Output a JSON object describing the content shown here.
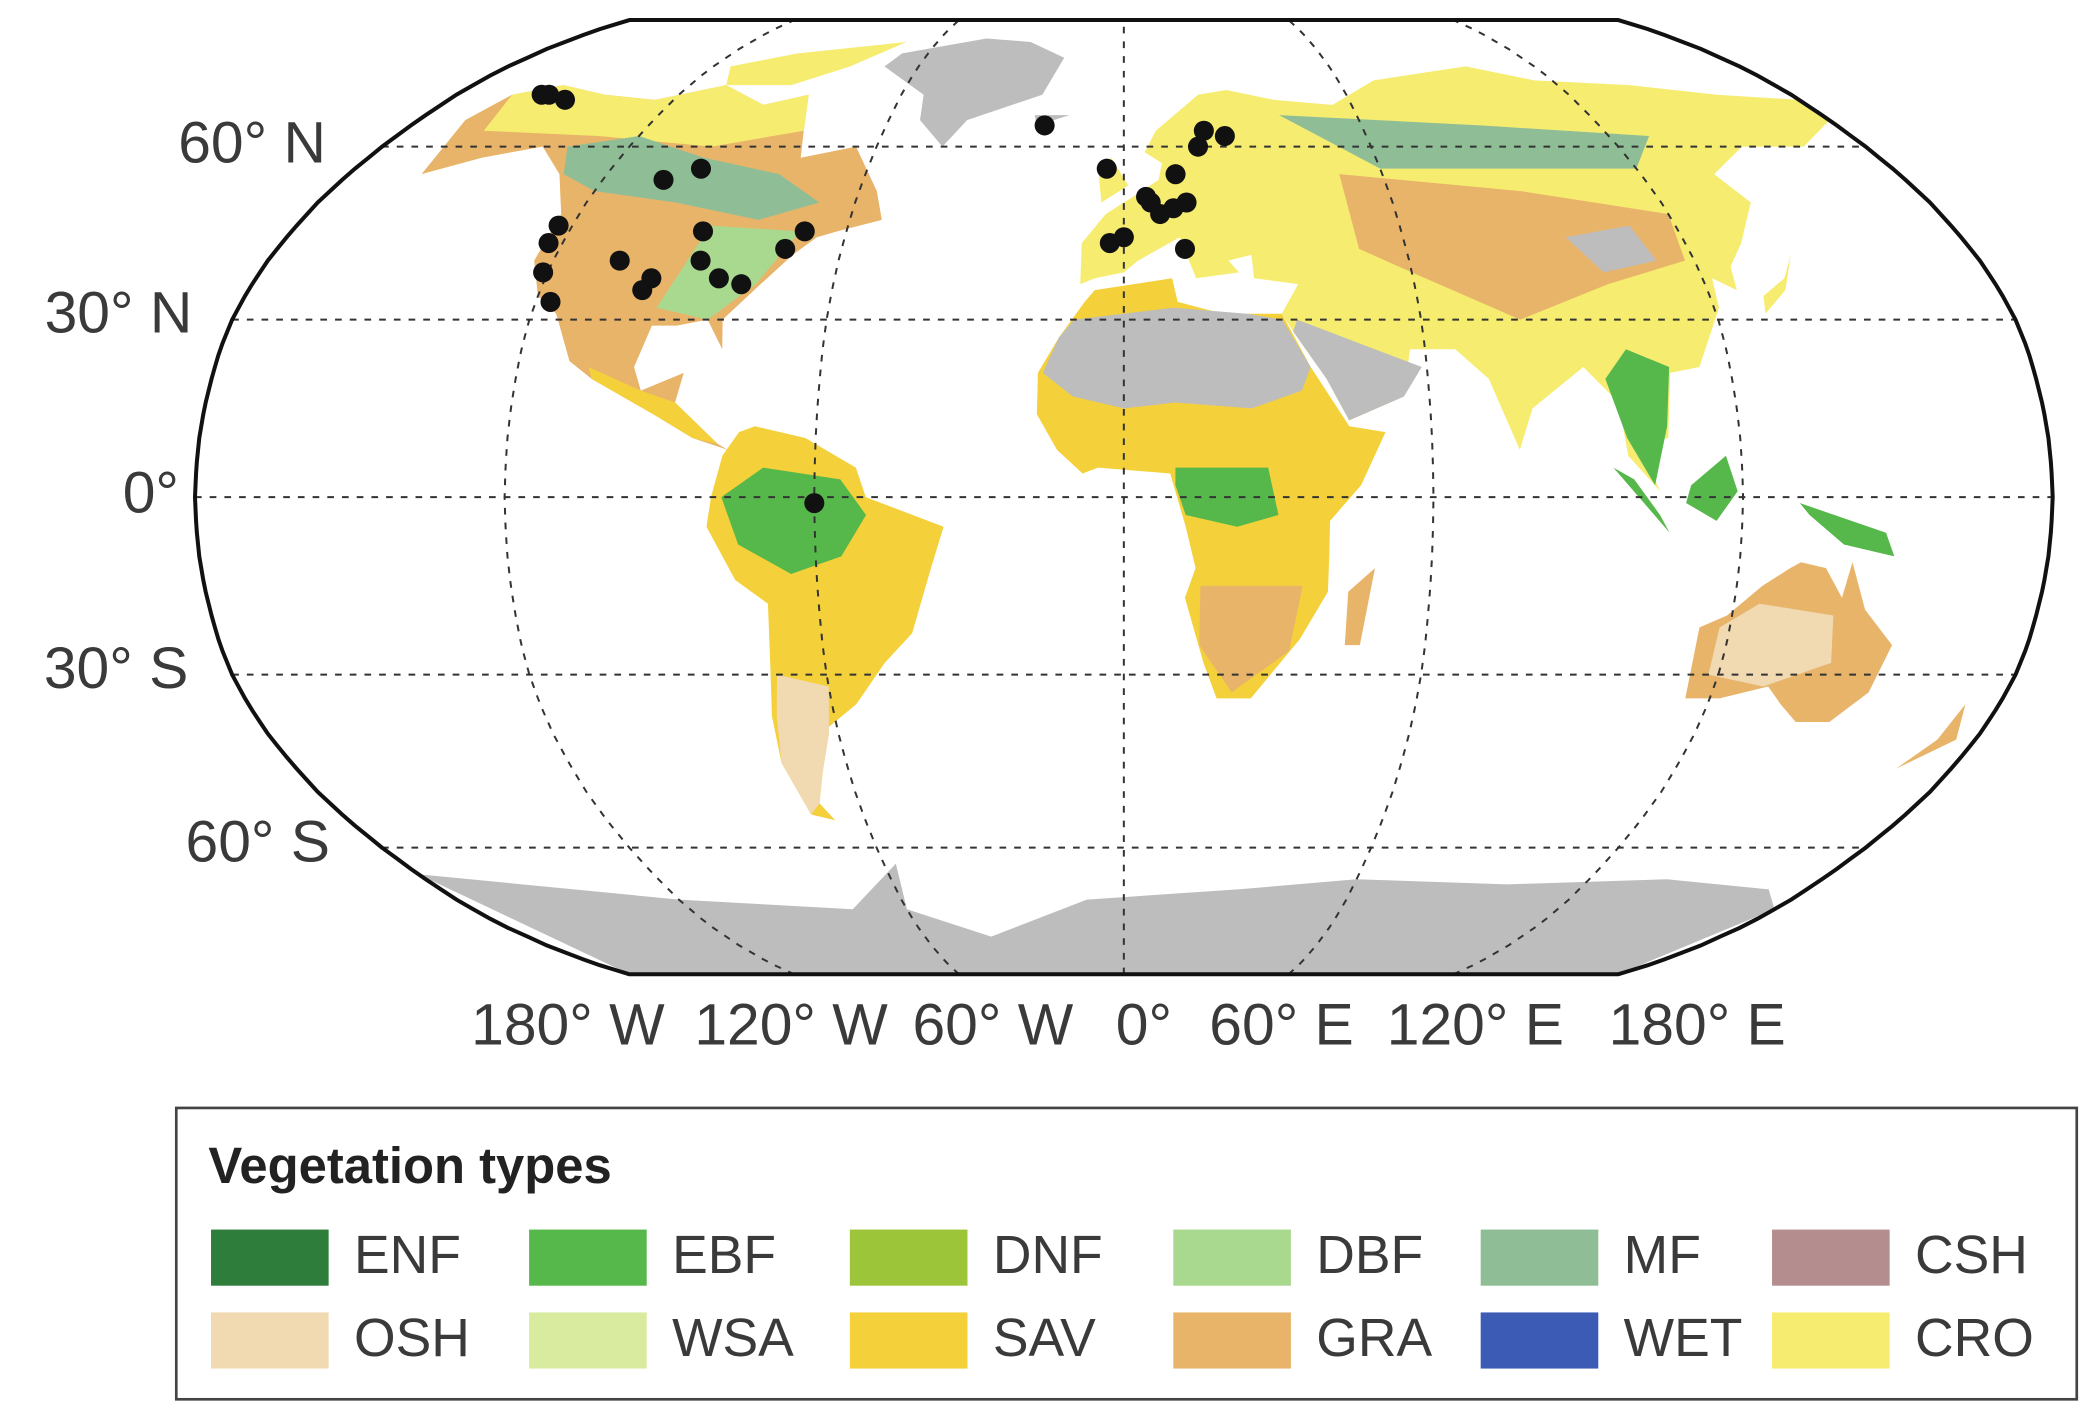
{
  "map": {
    "lat_labels": [
      "60° N",
      "30° N",
      "0°",
      "30° S",
      "60° S"
    ],
    "lon_labels": [
      "180° W",
      "120° W",
      "60° W",
      "0°",
      "60° E",
      "120° E",
      "180° E"
    ],
    "sites": [
      {
        "lat": 70,
        "lon": -157
      },
      {
        "lat": 70,
        "lon": -155
      },
      {
        "lat": 69,
        "lon": -149
      },
      {
        "lat": 54,
        "lon": -106
      },
      {
        "lat": 56,
        "lon": -99
      },
      {
        "lat": 46,
        "lon": -123
      },
      {
        "lat": 43,
        "lon": -123
      },
      {
        "lat": 40,
        "lon": -106
      },
      {
        "lat": 38,
        "lon": -121
      },
      {
        "lat": 33,
        "lon": -117
      },
      {
        "lat": 37,
        "lon": -98
      },
      {
        "lat": 35,
        "lon": -99
      },
      {
        "lat": 45,
        "lon": -91
      },
      {
        "lat": 40,
        "lon": -89
      },
      {
        "lat": 37,
        "lon": -84
      },
      {
        "lat": 36,
        "lon": -79
      },
      {
        "lat": 42,
        "lon": -72
      },
      {
        "lat": 45,
        "lon": -69
      },
      {
        "lat": 64,
        "lon": -20
      },
      {
        "lat": 56,
        "lon": -4
      },
      {
        "lat": 43,
        "lon": -3
      },
      {
        "lat": 44,
        "lon": 0
      },
      {
        "lat": 51,
        "lon": 5
      },
      {
        "lat": 50,
        "lon": 6
      },
      {
        "lat": 48,
        "lon": 8
      },
      {
        "lat": 55,
        "lon": 12
      },
      {
        "lat": 50,
        "lon": 14
      },
      {
        "lat": 49,
        "lon": 11
      },
      {
        "lat": 42,
        "lon": 13
      },
      {
        "lat": 60,
        "lon": 18
      },
      {
        "lat": 63,
        "lon": 20
      },
      {
        "lat": 62,
        "lon": 25
      },
      {
        "lat": -1,
        "lon": -60
      }
    ]
  },
  "legend": {
    "title": "Vegetation types",
    "items": [
      {
        "label": "ENF",
        "color": "#2f7d3b"
      },
      {
        "label": "EBF",
        "color": "#56b84a"
      },
      {
        "label": "DNF",
        "color": "#9cc53a"
      },
      {
        "label": "DBF",
        "color": "#a9d98e"
      },
      {
        "label": "MF",
        "color": "#8fbe96"
      },
      {
        "label": "CSH",
        "color": "#b48e8e"
      },
      {
        "label": "OSH",
        "color": "#f1d9b1"
      },
      {
        "label": "WSA",
        "color": "#d8eb9f"
      },
      {
        "label": "SAV",
        "color": "#f4d03a"
      },
      {
        "label": "GRA",
        "color": "#e8b46a"
      },
      {
        "label": "WET",
        "color": "#3b5bb5"
      },
      {
        "label": "CRO",
        "color": "#f6ec70"
      }
    ]
  }
}
